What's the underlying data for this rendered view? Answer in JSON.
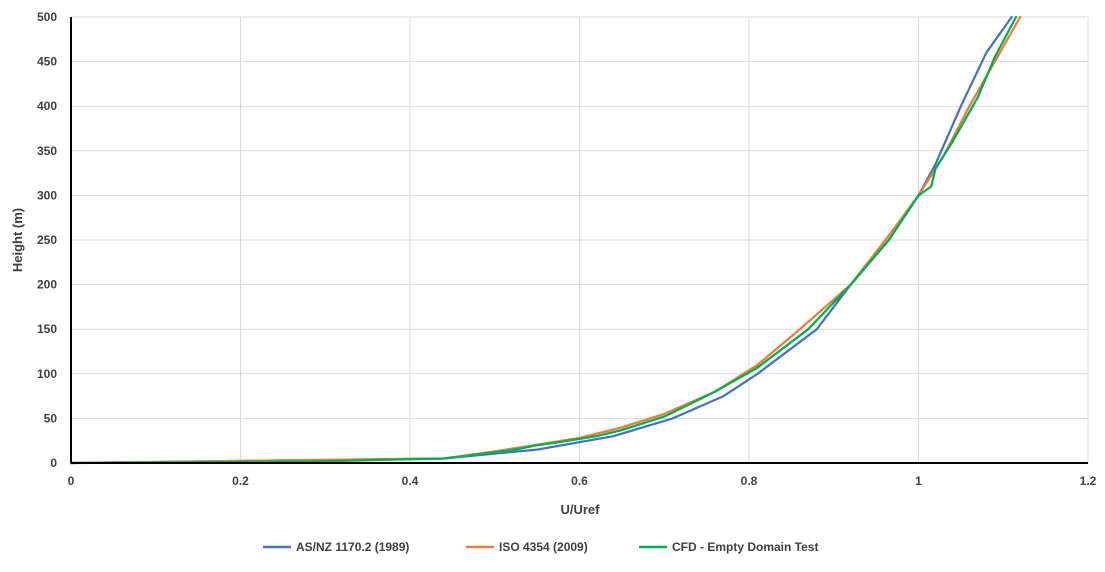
{
  "chart_data": {
    "type": "line",
    "title": "",
    "xlabel": "U/Uref",
    "ylabel": "Height (m)",
    "xlim": [
      0,
      1.2
    ],
    "ylim": [
      0,
      500
    ],
    "xticks": [
      0,
      0.2,
      0.4,
      0.6,
      0.8,
      1,
      1.2
    ],
    "xtick_labels": [
      "0",
      "0.2",
      "0.4",
      "0.6",
      "0.8",
      "1",
      "1.2"
    ],
    "yticks": [
      0,
      50,
      100,
      150,
      200,
      250,
      300,
      350,
      400,
      450,
      500
    ],
    "ytick_labels": [
      "0",
      "50",
      "100",
      "150",
      "200",
      "250",
      "300",
      "350",
      "400",
      "450",
      "500"
    ],
    "grid": true,
    "legend_position": "bottom",
    "series": [
      {
        "name": "AS/NZ 1170.2 (1989)",
        "color": "#4472C4",
        "x": [
          0,
          0.44,
          0.55,
          0.64,
          0.71,
          0.77,
          0.81,
          0.88,
          0.92,
          0.965,
          1.0,
          1.02,
          1.05,
          1.08,
          1.11
        ],
        "y": [
          0,
          5,
          15,
          30,
          50,
          75,
          100,
          150,
          200,
          250,
          300,
          335,
          400,
          460,
          500
        ]
      },
      {
        "name": "ISO 4354 (2009)",
        "color": "#ED7D31",
        "x": [
          0,
          0.44,
          0.5,
          0.6,
          0.65,
          0.7,
          0.76,
          0.81,
          0.86,
          0.92,
          0.965,
          1.0,
          1.03,
          1.06,
          1.09,
          1.12
        ],
        "y": [
          0,
          5,
          13,
          28,
          40,
          55,
          80,
          110,
          150,
          200,
          255,
          300,
          345,
          400,
          450,
          500
        ]
      },
      {
        "name": "CFD - Empty Domain Test",
        "color": "#00B050",
        "x": [
          0,
          0.3,
          0.44,
          0.5,
          0.53,
          0.55,
          0.58,
          0.6,
          0.62,
          0.65,
          0.7,
          0.76,
          0.81,
          0.87,
          0.92,
          0.965,
          1.0,
          1.015,
          1.02,
          1.04,
          1.07,
          1.09,
          1.115
        ],
        "y": [
          0,
          2,
          5,
          12,
          16,
          20,
          24,
          27,
          30,
          37,
          52,
          80,
          107,
          150,
          200,
          250,
          300,
          310,
          330,
          360,
          410,
          455,
          500
        ]
      }
    ]
  }
}
